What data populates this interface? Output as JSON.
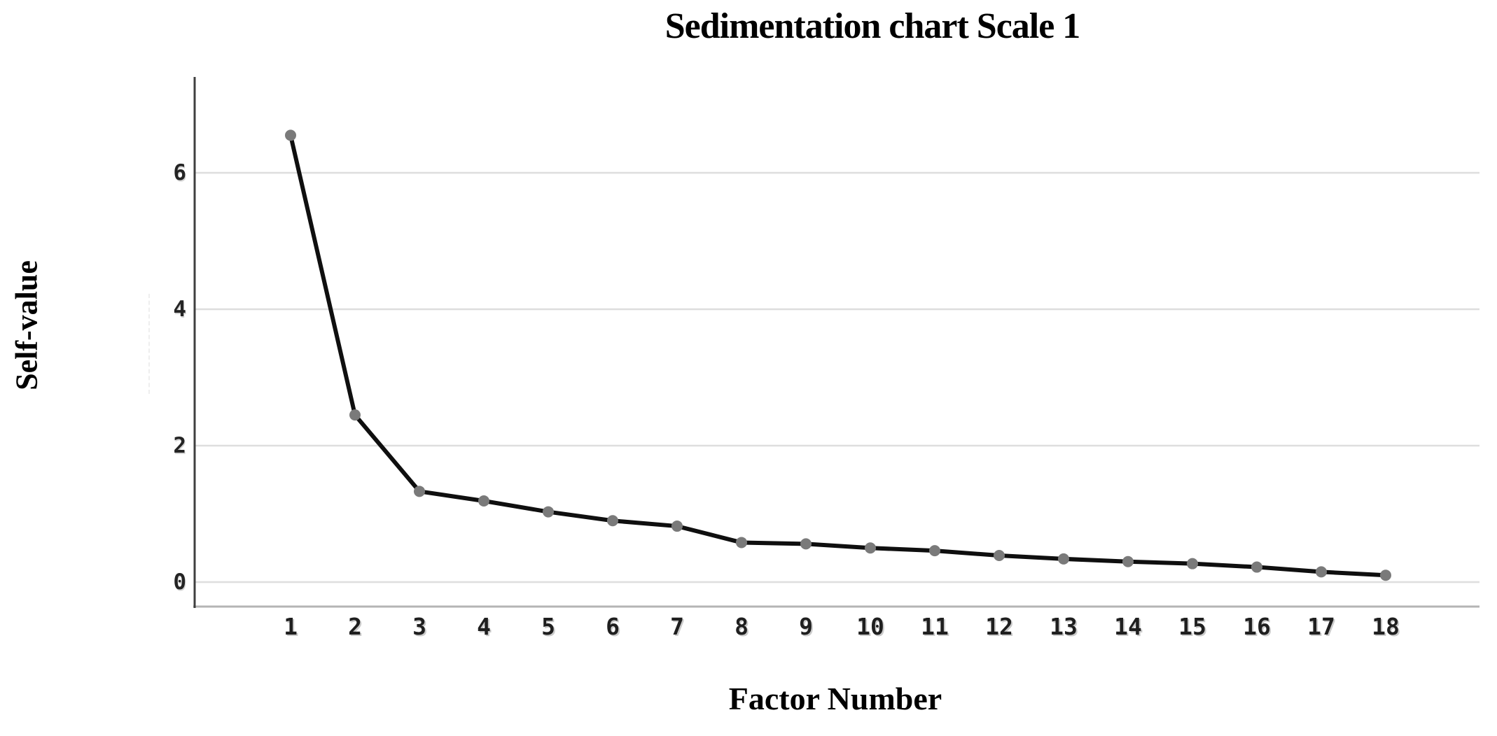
{
  "title": "Sedimentation chart Scale 1",
  "y_axis_label": "Self-value",
  "x_axis_label": "Factor Number",
  "colors": {
    "line": "#0f0f0f",
    "marker": "#7a7a7a",
    "gridline": "#dedede",
    "y_axis": "#3f3f3f",
    "x_axis": "#b4b4b4",
    "tick_text": "#1f1f1f",
    "background": "#ffffff"
  },
  "chart_data": {
    "type": "line",
    "title": "Sedimentation chart Scale 1",
    "xlabel": "Factor Number",
    "ylabel": "Self-value",
    "categories": [
      "1",
      "2",
      "3",
      "4",
      "5",
      "6",
      "7",
      "8",
      "9",
      "10",
      "11",
      "12",
      "13",
      "14",
      "15",
      "16",
      "17",
      "18"
    ],
    "values": [
      6.55,
      2.45,
      1.33,
      1.19,
      1.03,
      0.9,
      0.82,
      0.58,
      0.56,
      0.5,
      0.46,
      0.39,
      0.34,
      0.3,
      0.27,
      0.22,
      0.15,
      0.1
    ],
    "y_ticks": [
      0,
      2,
      4,
      6
    ],
    "ylim": [
      -0.37,
      7.4
    ],
    "grid": true,
    "legend": false,
    "marker": "circle",
    "series_name": "Self-value"
  }
}
